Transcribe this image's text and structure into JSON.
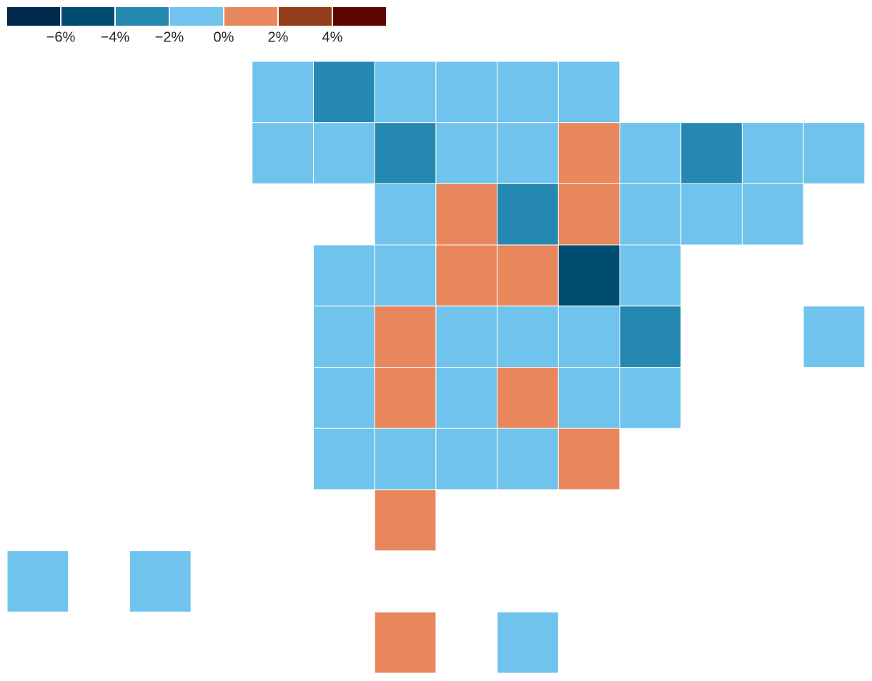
{
  "chart_data": {
    "type": "tilemap",
    "legend_ticks": [
      {
        "value": -6,
        "label": "−6%"
      },
      {
        "value": -4,
        "label": "−4%"
      },
      {
        "value": -2,
        "label": "−2%"
      },
      {
        "value": 0,
        "label": "0%"
      },
      {
        "value": 2,
        "label": "2%"
      },
      {
        "value": 4,
        "label": "4%"
      }
    ],
    "colors": [
      "#00294d",
      "#004d72",
      "#2488b0",
      "#6fc3ec",
      "#e8875c",
      "#933d1a",
      "#5c0800"
    ],
    "x": [
      4,
      5,
      6,
      7,
      8,
      9,
      4,
      5,
      6,
      7,
      8,
      9,
      10,
      11,
      12,
      13,
      6,
      7,
      8,
      9,
      10,
      11,
      12,
      5,
      6,
      7,
      8,
      9,
      10,
      5,
      6,
      7,
      8,
      9,
      10,
      13,
      5,
      6,
      7,
      8,
      9,
      10,
      5,
      6,
      7,
      8,
      9,
      6,
      0,
      2,
      6,
      8
    ],
    "y": [
      0,
      0,
      0,
      0,
      0,
      0,
      1,
      1,
      1,
      1,
      1,
      1,
      1,
      1,
      1,
      1,
      2,
      2,
      2,
      2,
      2,
      2,
      2,
      3,
      3,
      3,
      3,
      3,
      3,
      4,
      4,
      4,
      4,
      4,
      4,
      4,
      5,
      5,
      5,
      5,
      5,
      5,
      6,
      6,
      6,
      6,
      6,
      7,
      8,
      8,
      9,
      9
    ],
    "values": [
      -1,
      -3,
      -1,
      -1,
      -1,
      -1,
      -1,
      -1,
      -3,
      -1,
      -1,
      1,
      -1,
      -3,
      -1,
      -1,
      -1,
      1,
      -3,
      1,
      -1,
      -1,
      -1,
      -1,
      -1,
      1,
      1,
      -5,
      -1,
      -1,
      1,
      -1,
      -1,
      -1,
      -3,
      -1,
      -1,
      1,
      -1,
      1,
      -1,
      -1,
      -1,
      -1,
      -1,
      -1,
      1,
      1,
      -1,
      -1,
      1,
      -1
    ]
  }
}
